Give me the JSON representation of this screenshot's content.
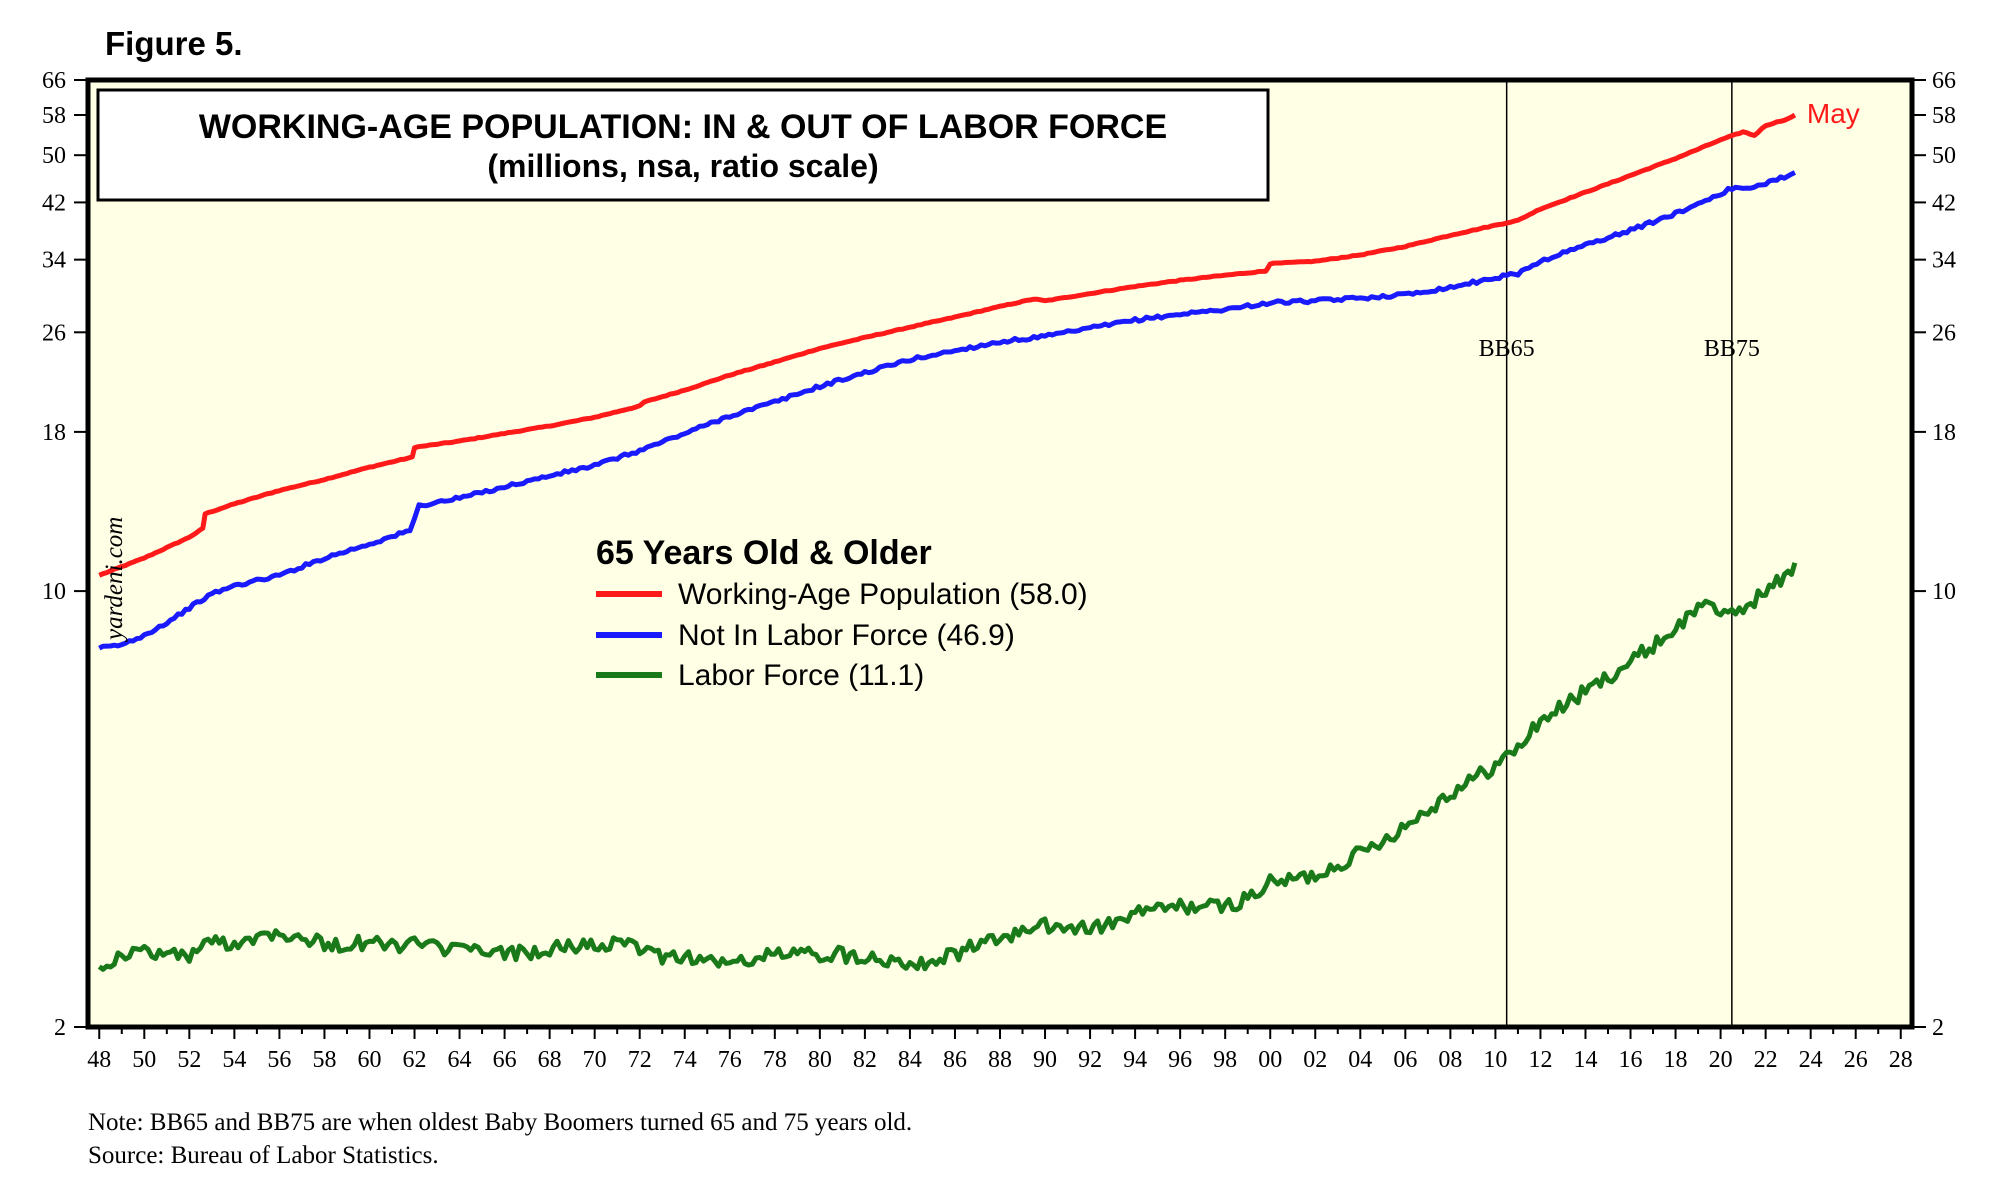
{
  "figure_label": "Figure 5.",
  "chart_data": {
    "type": "line",
    "scale": "log",
    "title": "WORKING-AGE POPULATION: IN & OUT OF LABOR FORCE",
    "subtitle": "(millions, nsa, ratio scale)",
    "watermark": "yardeni.com",
    "legend_title": "65 Years Old & Older",
    "x_range": [
      1947.5,
      2028.5
    ],
    "y_range": [
      2,
      66
    ],
    "y_ticks": [
      2,
      10,
      18,
      26,
      34,
      42,
      50,
      58,
      66
    ],
    "x_tick_labels": [
      "48",
      "50",
      "52",
      "54",
      "56",
      "58",
      "60",
      "62",
      "64",
      "66",
      "68",
      "70",
      "72",
      "74",
      "76",
      "78",
      "80",
      "82",
      "84",
      "86",
      "88",
      "90",
      "92",
      "94",
      "96",
      "98",
      "00",
      "02",
      "04",
      "06",
      "08",
      "10",
      "12",
      "14",
      "16",
      "18",
      "20",
      "22",
      "24",
      "26",
      "28"
    ],
    "end_label": "May",
    "vlines": [
      {
        "label": "BB65",
        "x": 2010.5
      },
      {
        "label": "BB75",
        "x": 2020.5
      }
    ],
    "series": [
      {
        "name": "Working-Age Population",
        "legend": "Working-Age Population (58.0)",
        "color": "#ff1a1a",
        "points": [
          [
            1948,
            10.6
          ],
          [
            1950,
            11.3
          ],
          [
            1952,
            12.2
          ],
          [
            1952.6,
            12.6
          ],
          [
            1952.7,
            13.3
          ],
          [
            1954,
            13.8
          ],
          [
            1956,
            14.5
          ],
          [
            1958,
            15.1
          ],
          [
            1960,
            15.8
          ],
          [
            1961.9,
            16.4
          ],
          [
            1962,
            17.0
          ],
          [
            1963,
            17.2
          ],
          [
            1964,
            17.4
          ],
          [
            1966,
            17.9
          ],
          [
            1968,
            18.4
          ],
          [
            1970,
            19.0
          ],
          [
            1972,
            19.8
          ],
          [
            1972.2,
            20.1
          ],
          [
            1974,
            21.0
          ],
          [
            1976,
            22.2
          ],
          [
            1978,
            23.3
          ],
          [
            1980,
            24.5
          ],
          [
            1982,
            25.5
          ],
          [
            1984,
            26.5
          ],
          [
            1986,
            27.5
          ],
          [
            1988,
            28.6
          ],
          [
            1989.5,
            29.4
          ],
          [
            1990,
            29.2
          ],
          [
            1992,
            30.0
          ],
          [
            1994,
            30.8
          ],
          [
            1996,
            31.5
          ],
          [
            1998,
            32.1
          ],
          [
            1999.8,
            32.6
          ],
          [
            2000,
            33.5
          ],
          [
            2002,
            33.8
          ],
          [
            2004,
            34.6
          ],
          [
            2006,
            35.7
          ],
          [
            2008,
            37.2
          ],
          [
            2010,
            38.6
          ],
          [
            2011,
            39.3
          ],
          [
            2012,
            41.0
          ],
          [
            2014,
            43.6
          ],
          [
            2016,
            46.4
          ],
          [
            2018,
            49.4
          ],
          [
            2020,
            52.9
          ],
          [
            2021,
            54.5
          ],
          [
            2021.5,
            53.8
          ],
          [
            2022,
            55.8
          ],
          [
            2023,
            57.2
          ],
          [
            2023.3,
            58.0
          ]
        ]
      },
      {
        "name": "Not In Labor Force",
        "legend": "Not In Labor Force (46.9)",
        "color": "#1a1aff",
        "points": [
          [
            1948,
            8.1
          ],
          [
            1949,
            8.2
          ],
          [
            1950,
            8.5
          ],
          [
            1951,
            8.9
          ],
          [
            1952,
            9.4
          ],
          [
            1953,
            9.9
          ],
          [
            1954,
            10.2
          ],
          [
            1956,
            10.6
          ],
          [
            1958,
            11.3
          ],
          [
            1960,
            11.9
          ],
          [
            1961.8,
            12.5
          ],
          [
            1962.2,
            13.7
          ],
          [
            1964,
            14.1
          ],
          [
            1966,
            14.7
          ],
          [
            1968,
            15.3
          ],
          [
            1970,
            15.9
          ],
          [
            1972,
            16.8
          ],
          [
            1974,
            17.9
          ],
          [
            1976,
            19.1
          ],
          [
            1978,
            20.1
          ],
          [
            1980,
            21.3
          ],
          [
            1982,
            22.4
          ],
          [
            1984,
            23.5
          ],
          [
            1986,
            24.3
          ],
          [
            1988,
            25.1
          ],
          [
            1990,
            25.6
          ],
          [
            1992,
            26.4
          ],
          [
            1994,
            27.2
          ],
          [
            1996,
            27.8
          ],
          [
            1998,
            28.3
          ],
          [
            2000,
            29.0
          ],
          [
            2002,
            29.2
          ],
          [
            2004,
            29.5
          ],
          [
            2006,
            29.9
          ],
          [
            2008,
            30.7
          ],
          [
            2010,
            31.8
          ],
          [
            2011,
            32.3
          ],
          [
            2012,
            33.8
          ],
          [
            2014,
            35.9
          ],
          [
            2016,
            37.9
          ],
          [
            2018,
            40.3
          ],
          [
            2020,
            43.4
          ],
          [
            2020.5,
            44.3
          ],
          [
            2021,
            44.0
          ],
          [
            2022,
            45.1
          ],
          [
            2023,
            46.4
          ],
          [
            2023.3,
            46.9
          ]
        ]
      },
      {
        "name": "Labor Force",
        "legend": "Labor Force (11.1)",
        "color": "#1a7a1a",
        "points": [
          [
            1948,
            2.5
          ],
          [
            1949,
            2.6
          ],
          [
            1950,
            2.65
          ],
          [
            1951,
            2.62
          ],
          [
            1952,
            2.6
          ],
          [
            1953,
            2.75
          ],
          [
            1954,
            2.72
          ],
          [
            1955,
            2.8
          ],
          [
            1956,
            2.85
          ],
          [
            1957,
            2.78
          ],
          [
            1958,
            2.72
          ],
          [
            1959,
            2.7
          ],
          [
            1960,
            2.74
          ],
          [
            1961,
            2.7
          ],
          [
            1962,
            2.72
          ],
          [
            1963,
            2.68
          ],
          [
            1964,
            2.66
          ],
          [
            1966,
            2.62
          ],
          [
            1968,
            2.66
          ],
          [
            1970,
            2.72
          ],
          [
            1972,
            2.68
          ],
          [
            1973,
            2.6
          ],
          [
            1974,
            2.6
          ],
          [
            1976,
            2.52
          ],
          [
            1978,
            2.62
          ],
          [
            1980,
            2.62
          ],
          [
            1982,
            2.6
          ],
          [
            1984,
            2.54
          ],
          [
            1985,
            2.55
          ],
          [
            1986,
            2.62
          ],
          [
            1988,
            2.78
          ],
          [
            1990,
            2.9
          ],
          [
            1992,
            2.88
          ],
          [
            1993,
            2.92
          ],
          [
            1994,
            3.05
          ],
          [
            1996,
            3.12
          ],
          [
            1998,
            3.12
          ],
          [
            1999,
            3.22
          ],
          [
            2000,
            3.4
          ],
          [
            2002,
            3.5
          ],
          [
            2004,
            3.8
          ],
          [
            2006,
            4.2
          ],
          [
            2008,
            4.75
          ],
          [
            2010,
            5.25
          ],
          [
            2011,
            5.6
          ],
          [
            2012,
            6.2
          ],
          [
            2014,
            6.9
          ],
          [
            2016,
            7.7
          ],
          [
            2018,
            8.7
          ],
          [
            2019.5,
            9.8
          ],
          [
            2020,
            9.0
          ],
          [
            2021,
            9.4
          ],
          [
            2022,
            10.0
          ],
          [
            2023,
            10.6
          ],
          [
            2023.3,
            11.1
          ]
        ]
      }
    ],
    "note": "Note: BB65 and BB75 are when oldest Baby Boomers turned 65 and 75 years old.",
    "source": "Source: Bureau of Labor Statistics."
  }
}
